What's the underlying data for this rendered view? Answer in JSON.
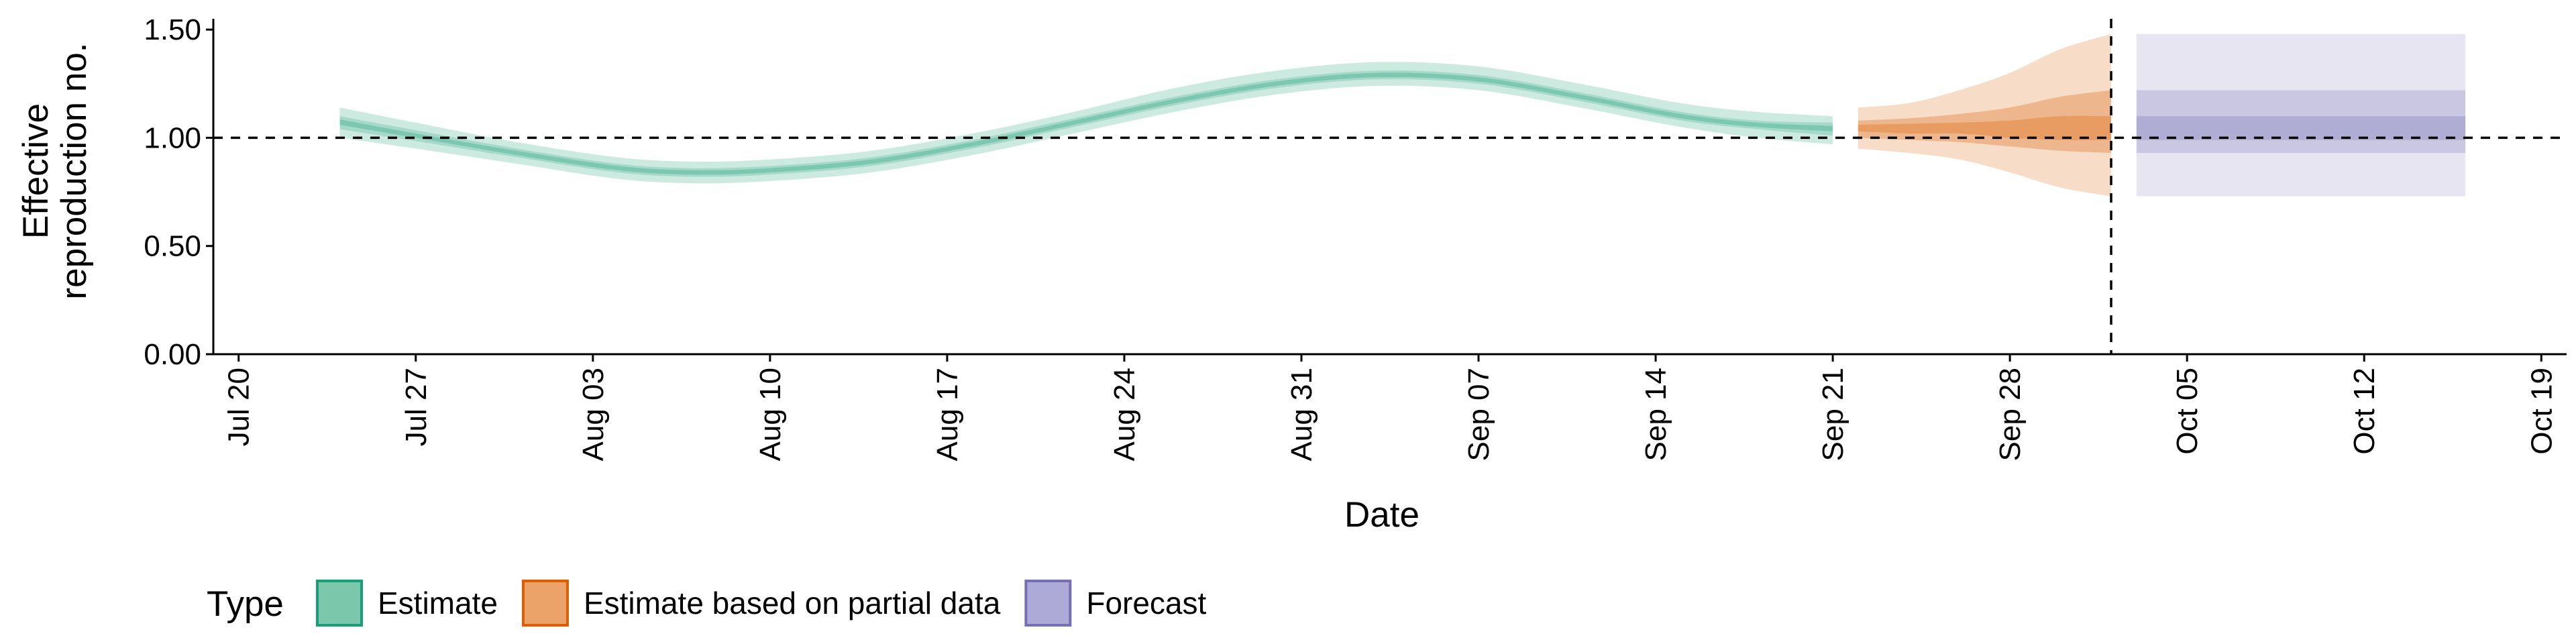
{
  "chart_data": {
    "type": "area",
    "xlabel": "Date",
    "ylabel_lines": [
      "Effective",
      "reproduction no."
    ],
    "ylim": [
      0,
      1.55
    ],
    "xlim": [
      "2020-07-19",
      "2020-10-20"
    ],
    "yticks": [
      {
        "value": 0,
        "label": "0.00"
      },
      {
        "value": 0.5,
        "label": "0.50"
      },
      {
        "value": 1.0,
        "label": "1.00"
      },
      {
        "value": 1.5,
        "label": "1.50"
      }
    ],
    "xticks": [
      {
        "date": "2020-07-20",
        "label": "Jul 20"
      },
      {
        "date": "2020-07-27",
        "label": "Jul 27"
      },
      {
        "date": "2020-08-03",
        "label": "Aug 03"
      },
      {
        "date": "2020-08-10",
        "label": "Aug 10"
      },
      {
        "date": "2020-08-17",
        "label": "Aug 17"
      },
      {
        "date": "2020-08-24",
        "label": "Aug 24"
      },
      {
        "date": "2020-08-31",
        "label": "Aug 31"
      },
      {
        "date": "2020-09-07",
        "label": "Sep 07"
      },
      {
        "date": "2020-09-14",
        "label": "Sep 14"
      },
      {
        "date": "2020-09-21",
        "label": "Sep 21"
      },
      {
        "date": "2020-09-28",
        "label": "Sep 28"
      },
      {
        "date": "2020-10-05",
        "label": "Oct 05"
      },
      {
        "date": "2020-10-12",
        "label": "Oct 12"
      },
      {
        "date": "2020-10-19",
        "label": "Oct 19"
      }
    ],
    "reference_line_y": 1.0,
    "vertical_line_date": "2020-10-02",
    "grid": false,
    "legend": {
      "title": "Type",
      "position": "bottom-left",
      "entries": [
        {
          "label": "Estimate",
          "fill": "#7ac7ab",
          "stroke": "#1b9e77"
        },
        {
          "label": "Estimate based on partial data",
          "fill": "#eba36a",
          "stroke": "#d95f02"
        },
        {
          "label": "Forecast",
          "fill": "#aeaad7",
          "stroke": "#7570b3"
        }
      ]
    },
    "series": [
      {
        "type_label": "Estimate",
        "color": "#1b9e77",
        "points": [
          {
            "date": "2020-07-24",
            "median": 1.07,
            "lower_90": 1.0,
            "upper_90": 1.14,
            "lower_50": 1.04,
            "upper_50": 1.1,
            "lower_20": 1.06,
            "upper_20": 1.085
          },
          {
            "date": "2020-07-27",
            "median": 1.01,
            "lower_90": 0.95,
            "upper_90": 1.07,
            "lower_50": 0.985,
            "upper_50": 1.035,
            "lower_20": 1.0,
            "upper_20": 1.02
          },
          {
            "date": "2020-07-31",
            "median": 0.93,
            "lower_90": 0.88,
            "upper_90": 0.98,
            "lower_50": 0.91,
            "upper_50": 0.95,
            "lower_20": 0.92,
            "upper_20": 0.94
          },
          {
            "date": "2020-08-04",
            "median": 0.86,
            "lower_90": 0.81,
            "upper_90": 0.91,
            "lower_50": 0.84,
            "upper_50": 0.88,
            "lower_20": 0.85,
            "upper_20": 0.87
          },
          {
            "date": "2020-08-07",
            "median": 0.84,
            "lower_90": 0.79,
            "upper_90": 0.89,
            "lower_50": 0.82,
            "upper_50": 0.86,
            "lower_20": 0.83,
            "upper_20": 0.85
          },
          {
            "date": "2020-08-10",
            "median": 0.85,
            "lower_90": 0.8,
            "upper_90": 0.9,
            "lower_50": 0.83,
            "upper_50": 0.87,
            "lower_20": 0.84,
            "upper_20": 0.86
          },
          {
            "date": "2020-08-14",
            "median": 0.89,
            "lower_90": 0.84,
            "upper_90": 0.94,
            "lower_50": 0.87,
            "upper_50": 0.91,
            "lower_20": 0.88,
            "upper_20": 0.9
          },
          {
            "date": "2020-08-18",
            "median": 0.97,
            "lower_90": 0.92,
            "upper_90": 1.02,
            "lower_50": 0.95,
            "upper_50": 0.99,
            "lower_20": 0.96,
            "upper_20": 0.98
          },
          {
            "date": "2020-08-22",
            "median": 1.07,
            "lower_90": 1.02,
            "upper_90": 1.12,
            "lower_50": 1.05,
            "upper_50": 1.09,
            "lower_20": 1.06,
            "upper_20": 1.08
          },
          {
            "date": "2020-08-26",
            "median": 1.17,
            "lower_90": 1.12,
            "upper_90": 1.23,
            "lower_50": 1.15,
            "upper_50": 1.19,
            "lower_20": 1.16,
            "upper_20": 1.18
          },
          {
            "date": "2020-08-30",
            "median": 1.25,
            "lower_90": 1.2,
            "upper_90": 1.31,
            "lower_50": 1.23,
            "upper_50": 1.27,
            "lower_20": 1.24,
            "upper_20": 1.26
          },
          {
            "date": "2020-09-03",
            "median": 1.29,
            "lower_90": 1.24,
            "upper_90": 1.35,
            "lower_50": 1.27,
            "upper_50": 1.31,
            "lower_20": 1.28,
            "upper_20": 1.3
          },
          {
            "date": "2020-09-07",
            "median": 1.27,
            "lower_90": 1.22,
            "upper_90": 1.33,
            "lower_50": 1.25,
            "upper_50": 1.29,
            "lower_20": 1.26,
            "upper_20": 1.28
          },
          {
            "date": "2020-09-11",
            "median": 1.19,
            "lower_90": 1.14,
            "upper_90": 1.25,
            "lower_50": 1.17,
            "upper_50": 1.21,
            "lower_20": 1.18,
            "upper_20": 1.2
          },
          {
            "date": "2020-09-15",
            "median": 1.1,
            "lower_90": 1.05,
            "upper_90": 1.16,
            "lower_50": 1.08,
            "upper_50": 1.12,
            "lower_20": 1.09,
            "upper_20": 1.11
          },
          {
            "date": "2020-09-18",
            "median": 1.06,
            "lower_90": 1.0,
            "upper_90": 1.12,
            "lower_50": 1.04,
            "upper_50": 1.08,
            "lower_20": 1.05,
            "upper_20": 1.07
          },
          {
            "date": "2020-09-21",
            "median": 1.04,
            "lower_90": 0.97,
            "upper_90": 1.1,
            "lower_50": 1.01,
            "upper_50": 1.07,
            "lower_20": 1.03,
            "upper_20": 1.055
          }
        ]
      },
      {
        "type_label": "Estimate based on partial data",
        "color": "#d95f02",
        "points": [
          {
            "date": "2020-09-22",
            "median": 1.04,
            "lower_90": 0.95,
            "upper_90": 1.14,
            "lower_50": 1.0,
            "upper_50": 1.08,
            "lower_20": 1.03,
            "upper_20": 1.06
          },
          {
            "date": "2020-09-24",
            "median": 1.04,
            "lower_90": 0.93,
            "upper_90": 1.16,
            "lower_50": 0.99,
            "upper_50": 1.09,
            "lower_20": 1.02,
            "upper_20": 1.065
          },
          {
            "date": "2020-09-26",
            "median": 1.04,
            "lower_90": 0.9,
            "upper_90": 1.22,
            "lower_50": 0.98,
            "upper_50": 1.11,
            "lower_20": 1.02,
            "upper_20": 1.07
          },
          {
            "date": "2020-09-28",
            "median": 1.04,
            "lower_90": 0.84,
            "upper_90": 1.3,
            "lower_50": 0.96,
            "upper_50": 1.14,
            "lower_20": 1.0,
            "upper_20": 1.08
          },
          {
            "date": "2020-09-30",
            "median": 1.04,
            "lower_90": 0.77,
            "upper_90": 1.41,
            "lower_50": 0.94,
            "upper_50": 1.19,
            "lower_20": 0.99,
            "upper_20": 1.1
          },
          {
            "date": "2020-10-02",
            "median": 1.04,
            "lower_90": 0.73,
            "upper_90": 1.48,
            "lower_50": 0.93,
            "upper_50": 1.22,
            "lower_20": 0.99,
            "upper_20": 1.1
          }
        ]
      },
      {
        "type_label": "Forecast",
        "color": "#7570b3",
        "points": [
          {
            "date": "2020-10-03",
            "median": 1.04,
            "lower_90": 0.73,
            "upper_90": 1.48,
            "lower_50": 0.93,
            "upper_50": 1.22,
            "lower_20": 0.99,
            "upper_20": 1.1
          },
          {
            "date": "2020-10-16",
            "median": 1.04,
            "lower_90": 0.73,
            "upper_90": 1.48,
            "lower_50": 0.93,
            "upper_50": 1.22,
            "lower_20": 0.99,
            "upper_20": 1.1
          }
        ]
      }
    ]
  }
}
